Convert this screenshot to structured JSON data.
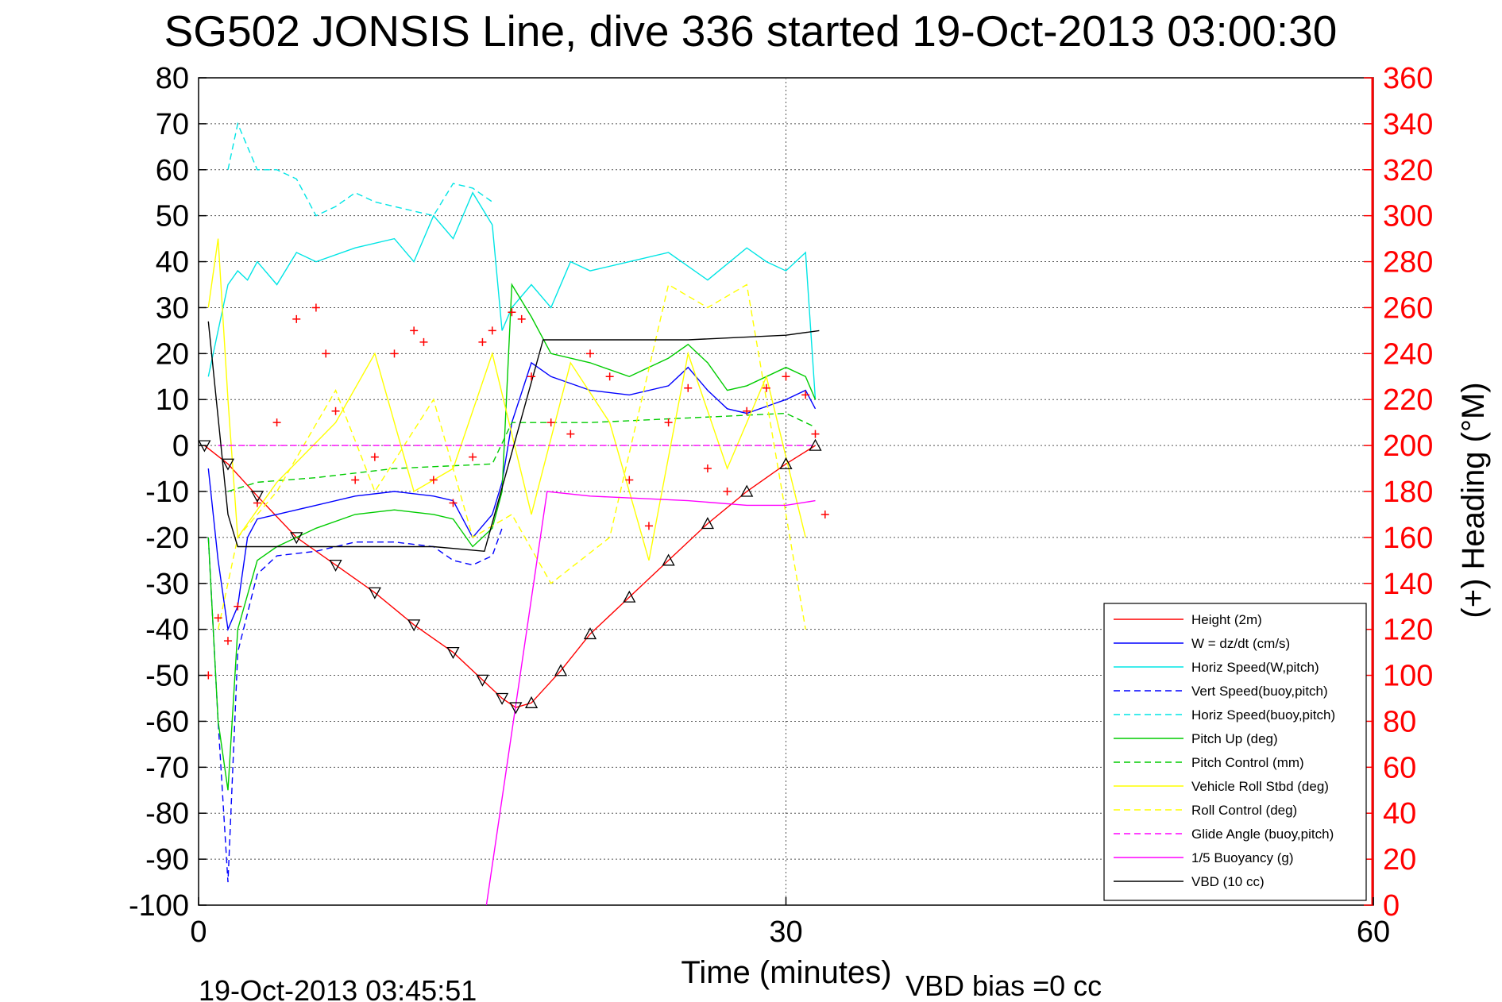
{
  "chart_data": {
    "type": "line",
    "title": "SG502 JONSIS Line, dive 336 started 19-Oct-2013 03:00:30",
    "xlabel": "Time (minutes)",
    "ylabel": "",
    "y2label": "(+) Heading (°M)",
    "xlim": [
      0,
      60
    ],
    "ylim": [
      -100,
      80
    ],
    "y2lim": [
      0,
      360
    ],
    "xticks": [
      "0",
      "30",
      "60"
    ],
    "yticks": [
      "80",
      "70",
      "60",
      "50",
      "40",
      "30",
      "20",
      "10",
      "0",
      "-10",
      "-20",
      "-30",
      "-40",
      "-50",
      "-60",
      "-70",
      "-80",
      "-90",
      "-100"
    ],
    "y2ticks": [
      "360",
      "340",
      "320",
      "300",
      "280",
      "260",
      "240",
      "220",
      "200",
      "180",
      "160",
      "140",
      "120",
      "100",
      "80",
      "60",
      "40",
      "20",
      "0"
    ],
    "grid": true,
    "legend_position": "bottom-right",
    "timestamp": "19-Oct-2013 03:45:51",
    "vbd_bias": "VBD bias =0 cc",
    "series": [
      {
        "name": "Height (2m)",
        "color": "#ff0000",
        "style": "solid",
        "x": [
          0.3,
          1.5,
          3,
          5,
          7,
          9,
          11,
          13,
          14.5,
          15.5,
          16.2,
          17,
          18.5,
          20,
          22,
          24,
          26,
          28,
          30,
          31.5
        ],
        "y": [
          0,
          -4,
          -11,
          -20,
          -26,
          -32,
          -39,
          -45,
          -51,
          -55,
          -57,
          -56,
          -49,
          -41,
          -33,
          -25,
          -17,
          -10,
          -4,
          0
        ]
      },
      {
        "name": "W = dz/dt (cm/s)",
        "color": "#0000ff",
        "style": "solid",
        "x": [
          0.5,
          1,
          1.5,
          2,
          2.5,
          3,
          4,
          5,
          6,
          8,
          10,
          12,
          13,
          14,
          15,
          15.5,
          16,
          17,
          18,
          20,
          22,
          24,
          25,
          26,
          27,
          28,
          30,
          31,
          31.5
        ],
        "y": [
          -5,
          -25,
          -40,
          -35,
          -20,
          -16,
          -15,
          -14,
          -13,
          -11,
          -10,
          -11,
          -12,
          -20,
          -15,
          -8,
          5,
          18,
          15,
          12,
          11,
          13,
          17,
          12,
          8,
          7,
          10,
          12,
          8
        ]
      },
      {
        "name": "Horiz Speed(W,pitch)",
        "color": "#00e5e5",
        "style": "solid",
        "x": [
          0.5,
          1,
          1.5,
          2,
          2.5,
          3,
          4,
          5,
          6,
          8,
          10,
          11,
          12,
          13,
          14,
          15,
          15.5,
          16,
          17,
          18,
          19,
          20,
          22,
          24,
          26,
          28,
          29,
          30,
          31,
          31.5
        ],
        "y": [
          15,
          25,
          35,
          38,
          36,
          40,
          35,
          42,
          40,
          43,
          45,
          40,
          50,
          45,
          55,
          48,
          25,
          30,
          35,
          30,
          40,
          38,
          40,
          42,
          36,
          43,
          40,
          38,
          42,
          10
        ]
      },
      {
        "name": "Vert Speed(buoy,pitch)",
        "color": "#0000ff",
        "style": "dashed",
        "x": [
          0.5,
          1,
          1.5,
          2,
          3,
          4,
          6,
          8,
          10,
          12,
          13,
          14,
          15,
          15.5
        ],
        "y": [
          -20,
          -60,
          -95,
          -45,
          -28,
          -24,
          -23,
          -21,
          -21,
          -22,
          -25,
          -26,
          -24,
          -18
        ]
      },
      {
        "name": "Horiz Speed(buoy,pitch)",
        "color": "#00e5e5",
        "style": "dashed",
        "x": [
          1.5,
          2,
          3,
          4,
          5,
          6,
          7,
          8,
          9,
          10,
          12,
          13,
          14,
          15
        ],
        "y": [
          60,
          70,
          60,
          60,
          58,
          50,
          52,
          55,
          53,
          52,
          50,
          57,
          56,
          53
        ]
      },
      {
        "name": "Pitch Up (deg)",
        "color": "#00cc00",
        "style": "solid",
        "x": [
          0.5,
          1,
          1.5,
          2,
          3,
          4,
          6,
          8,
          10,
          12,
          13,
          14,
          15,
          15.5,
          16,
          17,
          18,
          20,
          22,
          24,
          25,
          26,
          27,
          28,
          30,
          31,
          31.5
        ],
        "y": [
          -20,
          -60,
          -75,
          -40,
          -25,
          -22,
          -18,
          -15,
          -14,
          -15,
          -16,
          -22,
          -18,
          -10,
          35,
          28,
          20,
          18,
          15,
          19,
          22,
          18,
          12,
          13,
          17,
          15,
          10
        ]
      },
      {
        "name": "Pitch Control (mm)",
        "color": "#00cc00",
        "style": "dashed",
        "x": [
          1.5,
          3,
          6,
          10,
          15,
          16,
          20,
          25,
          30,
          31.5
        ],
        "y": [
          -10,
          -8,
          -7,
          -5,
          -4,
          5,
          5,
          6,
          7,
          4
        ]
      },
      {
        "name": "Vehicle Roll Stbd (deg)",
        "color": "#ffff00",
        "style": "solid",
        "x": [
          0.5,
          1,
          1.5,
          2,
          4,
          7,
          9,
          11,
          13,
          15,
          17,
          19,
          21,
          23,
          25,
          27,
          29,
          31
        ],
        "y": [
          30,
          45,
          10,
          -20,
          -8,
          5,
          20,
          -10,
          -5,
          20,
          -15,
          18,
          5,
          -25,
          20,
          -5,
          15,
          -20
        ]
      },
      {
        "name": "Roll Control (deg)",
        "color": "#ffff00",
        "style": "dashed",
        "x": [
          1,
          2,
          4,
          7,
          9,
          12,
          14,
          16,
          18,
          21,
          24,
          26,
          28,
          30,
          31
        ],
        "y": [
          -40,
          -20,
          -10,
          12,
          -10,
          10,
          -20,
          -15,
          -30,
          -20,
          35,
          30,
          35,
          -15,
          -40
        ]
      },
      {
        "name": "Glide Angle (buoy,pitch)",
        "color": "#ff00ff",
        "style": "dashed",
        "x": [
          1,
          2,
          5,
          10,
          15,
          16,
          20,
          25,
          30,
          31.5
        ],
        "y": [
          0,
          0,
          0,
          0,
          0,
          0,
          0,
          0,
          0,
          0
        ]
      },
      {
        "name": "1/5 Buoyancy (g)",
        "color": "#ff00ff",
        "style": "solid",
        "x": [
          14.7,
          17.8,
          20,
          25,
          28,
          30,
          31.5
        ],
        "y": [
          -100,
          -10,
          -11,
          -12,
          -13,
          -13,
          -12
        ]
      },
      {
        "name": "VBD (10 cc)",
        "color": "#000000",
        "style": "solid",
        "x": [
          0.5,
          1.5,
          2,
          4,
          8,
          12,
          14.6,
          17.6,
          20,
          25,
          30,
          31.7
        ],
        "y": [
          27,
          -15,
          -22,
          -22,
          -22,
          -22,
          -23,
          23,
          23,
          23,
          24,
          25
        ]
      }
    ],
    "heading_points": {
      "name": "(+) Heading (°M)",
      "color": "#ff0000",
      "x": [
        0.5,
        1,
        1.5,
        2,
        3,
        4,
        5,
        6,
        6.5,
        7,
        8,
        9,
        10,
        11,
        11.5,
        12,
        13,
        14,
        14.5,
        15,
        16,
        16.5,
        17,
        18,
        19,
        20,
        21,
        22,
        23,
        24,
        25,
        26,
        27,
        28,
        29,
        30,
        31,
        31.5,
        32
      ],
      "y": [
        100,
        125,
        115,
        130,
        175,
        210,
        255,
        260,
        240,
        215,
        185,
        195,
        240,
        250,
        245,
        185,
        175,
        195,
        245,
        250,
        258,
        255,
        230,
        210,
        205,
        240,
        230,
        185,
        165,
        210,
        225,
        190,
        180,
        215,
        225,
        230,
        222,
        205,
        170
      ]
    }
  }
}
